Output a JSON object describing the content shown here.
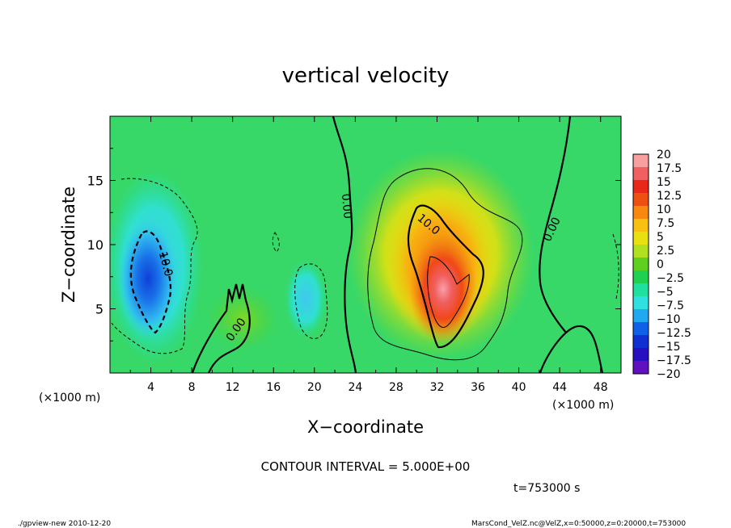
{
  "chart_data": {
    "type": "heatmap",
    "title": "vertical velocity",
    "xlabel": "X−coordinate",
    "ylabel": "Z−coordinate",
    "x_unit_left": "(×1000 m)",
    "x_unit_right": "(×1000 m)",
    "xlim": [
      0,
      50
    ],
    "ylim": [
      0,
      20
    ],
    "x_ticks": [
      4,
      8,
      12,
      16,
      20,
      24,
      28,
      32,
      36,
      40,
      44,
      48
    ],
    "y_ticks": [
      5,
      10,
      15
    ],
    "contour_labels": [
      {
        "text": "10.0",
        "x": 5.5,
        "z": 8.5,
        "angle": 75
      },
      {
        "text": "0.00",
        "x": 12.3,
        "z": 3.4,
        "angle": -55
      },
      {
        "text": "0.00",
        "x": 23.2,
        "z": 13.0,
        "angle": 85
      },
      {
        "text": "10.0",
        "x": 31.2,
        "z": 11.6,
        "angle": 40
      },
      {
        "text": "0.00",
        "x": 43.2,
        "z": 11.2,
        "angle": -65
      }
    ],
    "colorbar": {
      "levels": [
        "20",
        "17.5",
        "15",
        "12.5",
        "10",
        "7.5",
        "5",
        "2.5",
        "0",
        "−2.5",
        "−5",
        "−7.5",
        "−10",
        "−12.5",
        "−15",
        "−17.5",
        "−20"
      ],
      "colors": [
        "#f8a0a0",
        "#f06060",
        "#e82818",
        "#ee5010",
        "#f88810",
        "#f8c010",
        "#e8e010",
        "#b0e020",
        "#60d020",
        "#20d050",
        "#20e0a0",
        "#30e0e0",
        "#20a8f0",
        "#1060e8",
        "#1030d0",
        "#2810c0",
        "#6010c0"
      ]
    },
    "footer": {
      "contour_interval": "CONTOUR INTERVAL = 5.000E+00",
      "time": "t=753000 s",
      "left_note": "./gpview-new  2010-12-20",
      "right_note": "MarsCond_VelZ.nc@VelZ,x=0:50000,z=0:20000,t=753000"
    }
  }
}
